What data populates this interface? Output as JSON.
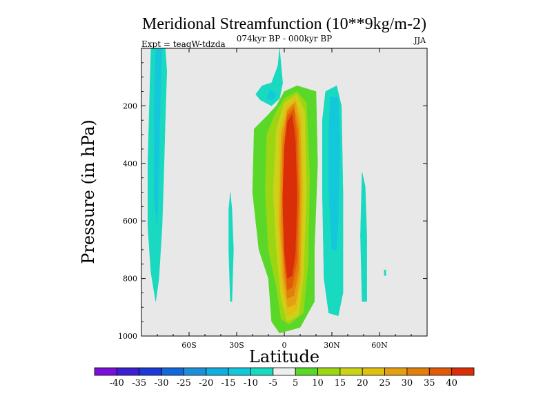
{
  "chart_data": {
    "type": "contour",
    "title": "Meridional Streamfunction (10**9kg/m-2)",
    "subtitle": "074kyr BP - 000kyr BP",
    "season": "JJA",
    "experiment": "Expt = teaqW-tdzda",
    "xlabel": "Latitude",
    "ylabel": "Pressure (in hPa)",
    "xlim": [
      -90,
      90
    ],
    "ylim": [
      1000,
      0
    ],
    "x_ticks": [
      {
        "value": -60,
        "label": "60S"
      },
      {
        "value": -30,
        "label": "30S"
      },
      {
        "value": 0,
        "label": "0"
      },
      {
        "value": 30,
        "label": "30N"
      },
      {
        "value": 60,
        "label": "60N"
      }
    ],
    "y_ticks": [
      {
        "value": 200,
        "label": "200"
      },
      {
        "value": 400,
        "label": "400"
      },
      {
        "value": 600,
        "label": "600"
      },
      {
        "value": 800,
        "label": "800"
      },
      {
        "value": 1000,
        "label": "1000"
      }
    ],
    "colorbar": {
      "colors": [
        "#7a0fd8",
        "#3c1fd0",
        "#1b3ad6",
        "#1368d8",
        "#1e8fd6",
        "#13aee0",
        "#14c8dc",
        "#19d9c0",
        "#eeeeee",
        "#5ad82a",
        "#9cd612",
        "#cad21a",
        "#e0c012",
        "#e4a012",
        "#e27e0a",
        "#e05a0a",
        "#da2e08"
      ],
      "labels": [
        "-40",
        "-35",
        "-30",
        "-25",
        "-20",
        "-15",
        "-10",
        "-5",
        "5",
        "10",
        "15",
        "20",
        "25",
        "30",
        "35",
        "40"
      ]
    },
    "regions": [
      {
        "name": "southern-cyan-cell",
        "level": -5,
        "color": "#19d9c0",
        "points": [
          [
            -84,
            0
          ],
          [
            -75,
            0
          ],
          [
            -74,
            80
          ],
          [
            -75,
            250
          ],
          [
            -76,
            450
          ],
          [
            -77,
            620
          ],
          [
            -79,
            800
          ],
          [
            -81,
            880
          ],
          [
            -84,
            780
          ],
          [
            -86,
            620
          ],
          [
            -86,
            400
          ],
          [
            -85,
            200
          ],
          [
            -84,
            0
          ]
        ]
      },
      {
        "name": "southern-blue-core",
        "level": -10,
        "color": "#14c8dc",
        "points": [
          [
            -81,
            0
          ],
          [
            -77,
            0
          ],
          [
            -78,
            150
          ],
          [
            -79,
            400
          ],
          [
            -80,
            620
          ],
          [
            -82,
            520
          ],
          [
            -82,
            200
          ],
          [
            -81,
            0
          ]
        ]
      },
      {
        "name": "sh-midlat-sliver",
        "level": -5,
        "color": "#19d9c0",
        "points": [
          [
            -34,
            500
          ],
          [
            -33,
            560
          ],
          [
            -32,
            700
          ],
          [
            -33,
            880
          ],
          [
            -34,
            880
          ],
          [
            -35,
            700
          ],
          [
            -35,
            560
          ],
          [
            -34,
            500
          ]
        ]
      },
      {
        "name": "upper-tropical-cyan",
        "level": -5,
        "color": "#19d9c0",
        "points": [
          [
            -3,
            0
          ],
          [
            -2,
            60
          ],
          [
            -1,
            120
          ],
          [
            -3,
            175
          ],
          [
            -8,
            200
          ],
          [
            -15,
            180
          ],
          [
            -18,
            160
          ],
          [
            -14,
            130
          ],
          [
            -8,
            120
          ],
          [
            -4,
            60
          ],
          [
            -3,
            0
          ]
        ]
      },
      {
        "name": "upper-tropical-blue",
        "level": -10,
        "color": "#14c8dc",
        "points": [
          [
            -9,
            145
          ],
          [
            -5,
            160
          ],
          [
            -7,
            180
          ],
          [
            -11,
            175
          ],
          [
            -9,
            145
          ]
        ]
      },
      {
        "name": "nh-cyan-cell",
        "level": -5,
        "color": "#19d9c0",
        "points": [
          [
            26,
            150
          ],
          [
            33,
            130
          ],
          [
            36,
            200
          ],
          [
            37,
            500
          ],
          [
            37,
            850
          ],
          [
            34,
            930
          ],
          [
            28,
            920
          ],
          [
            25,
            800
          ],
          [
            24,
            500
          ],
          [
            24,
            250
          ],
          [
            26,
            150
          ]
        ]
      },
      {
        "name": "nh-blue-core",
        "level": -10,
        "color": "#14c8dc",
        "points": [
          [
            29,
            170
          ],
          [
            34,
            170
          ],
          [
            35,
            350
          ],
          [
            34,
            600
          ],
          [
            33,
            700
          ],
          [
            30,
            700
          ],
          [
            28,
            500
          ],
          [
            28,
            300
          ],
          [
            29,
            170
          ]
        ]
      },
      {
        "name": "nh-subtropic-sliver",
        "level": -5,
        "color": "#19d9c0",
        "points": [
          [
            49,
            430
          ],
          [
            51,
            480
          ],
          [
            52,
            650
          ],
          [
            52,
            880
          ],
          [
            49,
            880
          ],
          [
            48,
            650
          ],
          [
            49,
            430
          ]
        ]
      },
      {
        "name": "nh-speck",
        "level": -5,
        "color": "#19d9c0",
        "points": [
          [
            63,
            770
          ],
          [
            64,
            770
          ],
          [
            64,
            790
          ],
          [
            63,
            790
          ],
          [
            63,
            770
          ]
        ]
      },
      {
        "name": "hadley-5",
        "level": 5,
        "color": "#5ad82a",
        "points": [
          [
            -19,
            280
          ],
          [
            -10,
            230
          ],
          [
            -5,
            200
          ],
          [
            0,
            150
          ],
          [
            8,
            130
          ],
          [
            20,
            150
          ],
          [
            21,
            400
          ],
          [
            19,
            700
          ],
          [
            19,
            880
          ],
          [
            10,
            970
          ],
          [
            -3,
            990
          ],
          [
            -8,
            950
          ],
          [
            -10,
            800
          ],
          [
            -16,
            700
          ],
          [
            -20,
            500
          ],
          [
            -19,
            280
          ]
        ]
      },
      {
        "name": "hadley-10",
        "level": 10,
        "color": "#9cd612",
        "points": [
          [
            -11,
            300
          ],
          [
            -6,
            230
          ],
          [
            0,
            175
          ],
          [
            8,
            150
          ],
          [
            14,
            190
          ],
          [
            16,
            450
          ],
          [
            15,
            750
          ],
          [
            12,
            920
          ],
          [
            3,
            960
          ],
          [
            -2,
            940
          ],
          [
            -5,
            830
          ],
          [
            -10,
            700
          ],
          [
            -12,
            500
          ],
          [
            -11,
            300
          ]
        ]
      },
      {
        "name": "hadley-15",
        "level": 15,
        "color": "#cad21a",
        "points": [
          [
            -5,
            280
          ],
          [
            0,
            190
          ],
          [
            8,
            160
          ],
          [
            13,
            220
          ],
          [
            14,
            500
          ],
          [
            12,
            800
          ],
          [
            9,
            930
          ],
          [
            2,
            950
          ],
          [
            -2,
            870
          ],
          [
            -5,
            700
          ],
          [
            -7,
            500
          ],
          [
            -5,
            280
          ]
        ]
      },
      {
        "name": "hadley-20",
        "level": 20,
        "color": "#e0c012",
        "points": [
          [
            -3,
            290
          ],
          [
            1,
            200
          ],
          [
            7,
            170
          ],
          [
            11,
            240
          ],
          [
            12,
            500
          ],
          [
            11,
            800
          ],
          [
            8,
            910
          ],
          [
            2,
            930
          ],
          [
            -2,
            820
          ],
          [
            -4,
            600
          ],
          [
            -3,
            290
          ]
        ]
      },
      {
        "name": "hadley-25",
        "level": 25,
        "color": "#e4a012",
        "points": [
          [
            -2,
            300
          ],
          [
            2,
            210
          ],
          [
            7,
            185
          ],
          [
            10,
            260
          ],
          [
            11,
            500
          ],
          [
            10,
            790
          ],
          [
            7,
            890
          ],
          [
            2,
            900
          ],
          [
            -1,
            800
          ],
          [
            -3,
            600
          ],
          [
            -2,
            300
          ]
        ]
      },
      {
        "name": "hadley-30",
        "level": 30,
        "color": "#e27e0a",
        "points": [
          [
            -1,
            320
          ],
          [
            2,
            220
          ],
          [
            6,
            195
          ],
          [
            9,
            280
          ],
          [
            10,
            500
          ],
          [
            9,
            770
          ],
          [
            6,
            860
          ],
          [
            2,
            870
          ],
          [
            0,
            780
          ],
          [
            -2,
            600
          ],
          [
            -1,
            320
          ]
        ]
      },
      {
        "name": "hadley-35",
        "level": 35,
        "color": "#e05a0a",
        "points": [
          [
            0,
            330
          ],
          [
            2,
            235
          ],
          [
            6,
            210
          ],
          [
            8,
            300
          ],
          [
            9,
            520
          ],
          [
            8,
            740
          ],
          [
            5,
            830
          ],
          [
            2,
            840
          ],
          [
            0,
            740
          ],
          [
            -1,
            560
          ],
          [
            0,
            330
          ]
        ]
      },
      {
        "name": "hadley-40",
        "level": 40,
        "color": "#da2e08",
        "points": [
          [
            0,
            350
          ],
          [
            2,
            255
          ],
          [
            5,
            230
          ],
          [
            7,
            320
          ],
          [
            8,
            520
          ],
          [
            7,
            710
          ],
          [
            5,
            790
          ],
          [
            2,
            800
          ],
          [
            0,
            700
          ],
          [
            -1,
            520
          ],
          [
            0,
            350
          ]
        ]
      }
    ]
  }
}
